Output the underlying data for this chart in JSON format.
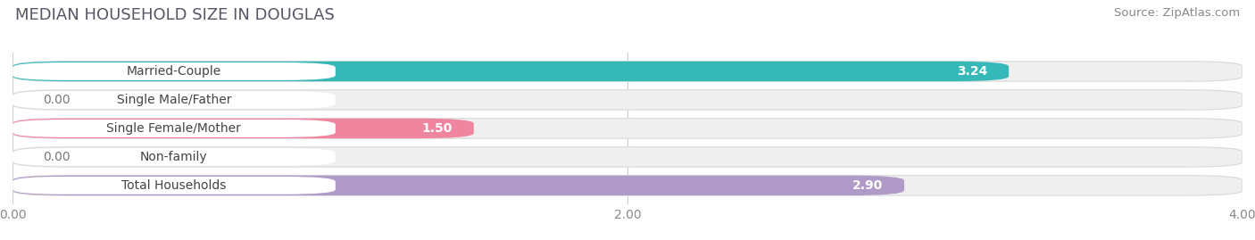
{
  "title": "MEDIAN HOUSEHOLD SIZE IN DOUGLAS",
  "source": "Source: ZipAtlas.com",
  "categories": [
    "Married-Couple",
    "Single Male/Father",
    "Single Female/Mother",
    "Non-family",
    "Total Households"
  ],
  "values": [
    3.24,
    0.0,
    1.5,
    0.0,
    2.9
  ],
  "bar_colors": [
    "#36b8b8",
    "#9ab5d8",
    "#f085a0",
    "#f5c98a",
    "#b09ac8"
  ],
  "bar_bg_colors": [
    "#efefef",
    "#efefef",
    "#efefef",
    "#efefef",
    "#efefef"
  ],
  "value_colors": [
    "#ffffff",
    "#777777",
    "#777777",
    "#777777",
    "#ffffff"
  ],
  "xlim": [
    0,
    4.0
  ],
  "xticks": [
    0.0,
    2.0,
    4.0
  ],
  "xtick_labels": [
    "0.00",
    "2.00",
    "4.00"
  ],
  "title_fontsize": 13,
  "source_fontsize": 9.5,
  "label_fontsize": 10,
  "tick_fontsize": 10,
  "background_color": "#ffffff",
  "grid_color": "#cccccc"
}
